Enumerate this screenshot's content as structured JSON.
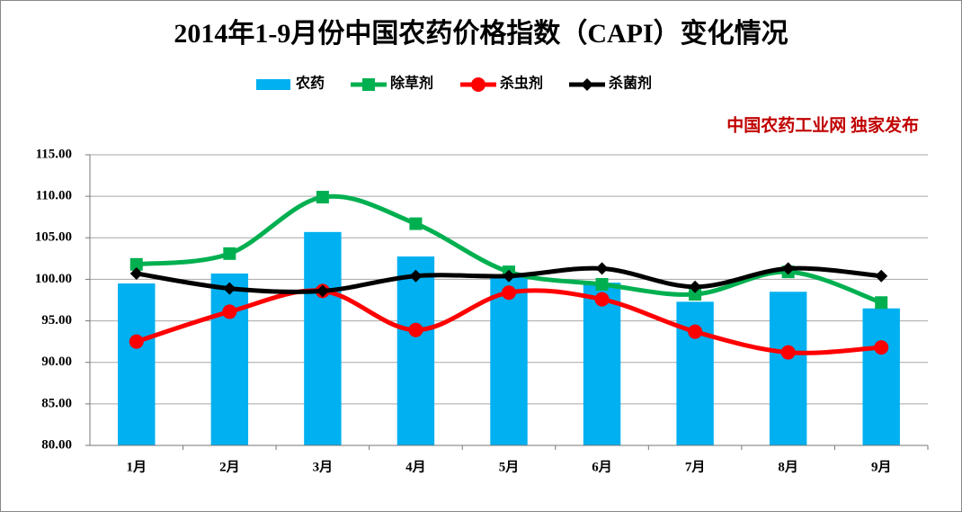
{
  "chart_data": {
    "type": "bar",
    "title": "2014年1-9月份中国农药价格指数（CAPI）变化情况",
    "annotation": "中国农药工业网 独家发布",
    "categories": [
      "1月",
      "2月",
      "3月",
      "4月",
      "5月",
      "6月",
      "7月",
      "8月",
      "9月"
    ],
    "series": [
      {
        "name": "农药",
        "type": "bar",
        "color": "#00b0f0",
        "values": [
          99.5,
          100.7,
          105.7,
          102.75,
          100.6,
          99.6,
          97.3,
          98.5,
          96.5
        ]
      },
      {
        "name": "除草剂",
        "type": "line",
        "marker": "square",
        "color": "#00b050",
        "values": [
          101.8,
          103.1,
          109.9,
          106.7,
          100.9,
          99.4,
          98.2,
          100.9,
          97.2
        ]
      },
      {
        "name": "杀虫剂",
        "type": "line",
        "marker": "circle",
        "color": "#ff0000",
        "values": [
          92.5,
          96.1,
          98.6,
          93.9,
          98.4,
          97.6,
          93.7,
          91.2,
          91.8
        ]
      },
      {
        "name": "杀菌剂",
        "type": "line",
        "marker": "diamond",
        "color": "#000000",
        "values": [
          100.7,
          98.9,
          98.6,
          100.4,
          100.4,
          101.3,
          99.1,
          101.3,
          100.4
        ]
      }
    ],
    "ylim": [
      80,
      115
    ],
    "yticks": [
      {
        "value": 80,
        "label": "80.00"
      },
      {
        "value": 85,
        "label": "85.00"
      },
      {
        "value": 90,
        "label": "90.00"
      },
      {
        "value": 95,
        "label": "95.00"
      },
      {
        "value": 100,
        "label": "100.00"
      },
      {
        "value": 105,
        "label": "105.00"
      },
      {
        "value": 110,
        "label": "110.00"
      },
      {
        "value": 115,
        "label": "115.00"
      }
    ],
    "grid": true
  }
}
